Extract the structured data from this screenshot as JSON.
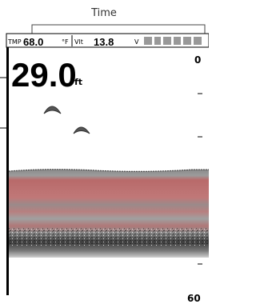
{
  "callout": {
    "label": "Time"
  },
  "status_bar": {
    "temp_label": "TMP",
    "temp_value": "68.0",
    "temp_unit": "°F",
    "volt_label": "Vlt",
    "volt_value": "13.8",
    "volt_unit": "V"
  },
  "depth": {
    "value": "29.0",
    "unit": "ft"
  },
  "scale": {
    "top": "0",
    "bottom": "60"
  }
}
